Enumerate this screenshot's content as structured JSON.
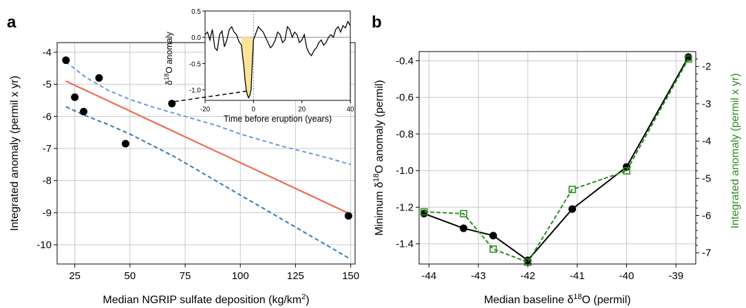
{
  "panel_a_label": "a",
  "panel_b_label": "b",
  "chart_data": [
    {
      "id": "panel-a",
      "type": "scatter",
      "title": "",
      "xlabel": "Median NGRIP sulfate deposition (kg/km",
      "xlabel_sup": "2",
      "xlabel_end": ")",
      "ylabel": "Integrated anomaly (permil x yr)",
      "xlim": [
        17,
        152
      ],
      "ylim": [
        -10.6,
        -3.7
      ],
      "xticks": [
        25,
        50,
        75,
        100,
        125,
        150
      ],
      "yticks": [
        -10,
        -9,
        -8,
        -7,
        -6,
        -5,
        -4
      ],
      "grid": true,
      "points": [
        {
          "x": 21,
          "y": -4.25
        },
        {
          "x": 25,
          "y": -5.4
        },
        {
          "x": 29,
          "y": -5.85
        },
        {
          "x": 36,
          "y": -4.8
        },
        {
          "x": 48,
          "y": -6.85
        },
        {
          "x": 69,
          "y": -5.6
        },
        {
          "x": 149,
          "y": -9.1
        }
      ],
      "fit_line": {
        "color": "#ee6a50",
        "x": [
          21,
          150
        ],
        "y": [
          -4.9,
          -9.05
        ]
      },
      "upper_band": {
        "color": "#6a97e3",
        "x": [
          21,
          30,
          40,
          50,
          60,
          70,
          80,
          90,
          100,
          110,
          120,
          130,
          140,
          150
        ],
        "y": [
          -4.3,
          -4.78,
          -5.18,
          -5.47,
          -5.7,
          -5.9,
          -6.1,
          -6.3,
          -6.55,
          -6.75,
          -6.95,
          -7.12,
          -7.3,
          -7.5
        ]
      },
      "lower_band": {
        "color": "#2f7ab8",
        "x": [
          21,
          30,
          40,
          50,
          60,
          70,
          80,
          90,
          100,
          110,
          120,
          130,
          140,
          150
        ],
        "y": [
          -5.7,
          -5.98,
          -6.25,
          -6.55,
          -6.9,
          -7.25,
          -7.65,
          -8.05,
          -8.45,
          -8.85,
          -9.25,
          -9.65,
          -10.05,
          -10.45
        ]
      }
    },
    {
      "id": "inset",
      "type": "line",
      "xlabel": "Time before eruption (years)",
      "ylabel_prefix": "δ",
      "ylabel_sup": "18",
      "ylabel_suffix": "O anomaly",
      "xlim": [
        -20,
        40
      ],
      "ylim": [
        -1.2,
        0.5
      ],
      "xticks": [
        -20,
        0,
        20,
        40
      ],
      "yticks": [
        0.5,
        0.0,
        -0.5,
        -1.0
      ],
      "ytick_labels": [
        "0.5",
        "0.0",
        "-0.5",
        "-1.0"
      ],
      "fill_color": "#fbe39a",
      "fill_range": [
        -5,
        0
      ],
      "x": [
        -20,
        -19,
        -18,
        -17,
        -16,
        -15,
        -14,
        -13,
        -12,
        -11,
        -10,
        -9,
        -8,
        -7,
        -6,
        -5,
        -4.5,
        -4,
        -3.5,
        -3,
        -2.5,
        -2,
        -1.5,
        -1,
        -0.5,
        0,
        1,
        2,
        3,
        4,
        5,
        6,
        7,
        8,
        9,
        10,
        11,
        12,
        13,
        14,
        15,
        16,
        17,
        18,
        19,
        20,
        21,
        22,
        23,
        24,
        25,
        26,
        27,
        28,
        29,
        30,
        31,
        32,
        33,
        34,
        35,
        36,
        37,
        38,
        39,
        40
      ],
      "y": [
        0.05,
        0.1,
        -0.05,
        0.15,
        -0.2,
        -0.25,
        0.05,
        0.12,
        -0.18,
        -0.05,
        0.15,
        0.2,
        0.1,
        0.05,
        -0.08,
        -0.15,
        -0.35,
        -0.55,
        -0.8,
        -1.0,
        -1.1,
        -1.15,
        -1.1,
        -1.0,
        -0.5,
        -0.05,
        0.08,
        0.2,
        0.15,
        0.1,
        0.0,
        -0.1,
        -0.2,
        -0.15,
        -0.05,
        0.1,
        0.05,
        -0.1,
        -0.05,
        0.2,
        0.15,
        0.0,
        0.1,
        0.05,
        -0.1,
        -0.05,
        0.05,
        -0.2,
        -0.3,
        -0.35,
        -0.25,
        -0.2,
        -0.1,
        -0.05,
        -0.15,
        -0.1,
        0.0,
        0.05,
        0.0,
        0.15,
        0.2,
        0.1,
        0.22,
        0.18,
        0.3,
        0.22
      ],
      "points": [],
      "leader": {
        "color": "#000000"
      }
    },
    {
      "id": "panel-b",
      "type": "line",
      "xlabel": "Median baseline δ",
      "xlabel_sup": "18",
      "xlabel_end": "O (permil)",
      "ylabel_prefix": "Minimum δ",
      "ylabel_sup": "18",
      "ylabel_suffix": "O anomaly (permil)",
      "y2label": "Integrated anomaly (permil x yr)",
      "xlim": [
        -44.2,
        -38.6
      ],
      "ylim": [
        -1.51,
        -0.35
      ],
      "y2lim": [
        -7.3,
        -1.6
      ],
      "xticks": [
        -44,
        -43,
        -42,
        -41,
        -40,
        -39
      ],
      "yticks": [
        -1.4,
        -1.2,
        -1.0,
        -0.8,
        -0.6,
        -0.4
      ],
      "ytick_labels": [
        "-1.4",
        "-1.2",
        "-1.0",
        "-0.8",
        "-0.6",
        "-0.4"
      ],
      "y2ticks": [
        -7,
        -6,
        -5,
        -4,
        -3,
        -2
      ],
      "grid": true,
      "series": [
        {
          "name": "",
          "axis": "left",
          "color": "#000000",
          "marker": "circle",
          "x": [
            -44.1,
            -43.3,
            -42.7,
            -42.0,
            -41.1,
            -40.0,
            -38.75
          ],
          "y": [
            -1.235,
            -1.315,
            -1.355,
            -1.49,
            -1.21,
            -0.98,
            -0.38
          ]
        },
        {
          "name": "",
          "axis": "right",
          "color": "#2a8c1e",
          "marker": "square-open",
          "x": [
            -44.1,
            -43.3,
            -42.7,
            -42.0,
            -41.1,
            -40.0,
            -38.75
          ],
          "y": [
            -5.9,
            -5.95,
            -6.9,
            -7.25,
            -5.3,
            -4.8,
            -1.8
          ]
        }
      ]
    }
  ]
}
